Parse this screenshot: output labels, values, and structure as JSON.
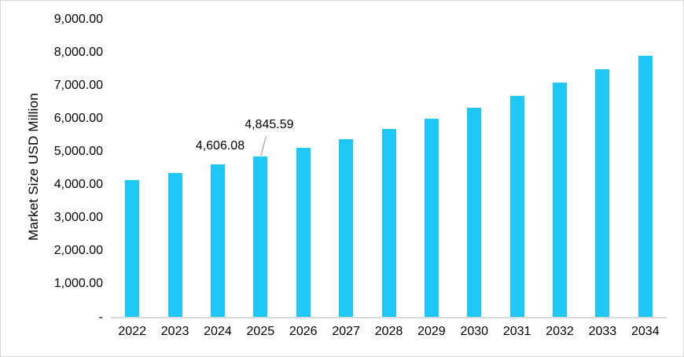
{
  "chart_data": {
    "type": "bar",
    "title": "",
    "xlabel": "",
    "ylabel": "Market Size USD Million",
    "categories": [
      "2022",
      "2023",
      "2024",
      "2025",
      "2026",
      "2027",
      "2028",
      "2029",
      "2030",
      "2031",
      "2032",
      "2033",
      "2034"
    ],
    "values": [
      4130,
      4360,
      4606.08,
      4845.59,
      5100,
      5380,
      5670,
      5990,
      6330,
      6670,
      7080,
      7480,
      7890
    ],
    "ylim": [
      0,
      9000
    ],
    "y_tick_interval": 1000,
    "y_tick_labels": [
      "9,000.00",
      "8,000.00",
      "7,000.00",
      "6,000.00",
      "5,000.00",
      "4,000.00",
      "3,000.00",
      "2,000.00",
      "1,000.00",
      "-"
    ],
    "grid": false,
    "legend": false,
    "bar_color": "#1ec7f4",
    "axis_line_color": "#d9d9d9",
    "leader_line_color": "#a6a6a6",
    "text_color": "#000000",
    "data_labels": [
      {
        "category": "2024",
        "text": "4,606.08",
        "leader_line": false
      },
      {
        "category": "2025",
        "text": "4,845.59",
        "leader_line": true
      }
    ]
  }
}
